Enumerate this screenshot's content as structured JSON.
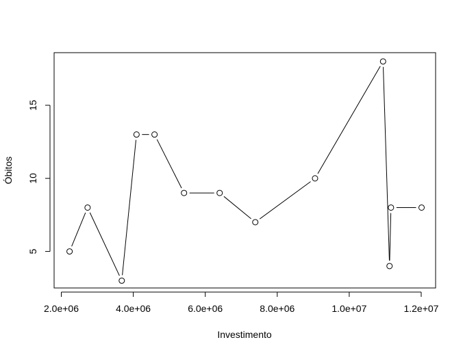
{
  "chart_data": {
    "type": "line",
    "title": "",
    "xlabel": "Investimento",
    "ylabel": "Óbitos",
    "xlim": [
      1800000,
      12400000
    ],
    "ylim": [
      2.5,
      18.6
    ],
    "grid": false,
    "x_ticks": [
      2000000,
      4000000,
      6000000,
      8000000,
      10000000,
      12000000
    ],
    "x_tick_labels": [
      "2.0e+06",
      "4.0e+06",
      "6.0e+06",
      "8.0e+06",
      "1.0e+07",
      "1.2e+07"
    ],
    "y_ticks": [
      5,
      10,
      15
    ],
    "y_tick_labels": [
      "5",
      "10",
      "15"
    ],
    "series": [
      {
        "x": [
          2230000,
          2730000,
          3680000,
          4090000,
          4590000,
          5410000,
          6400000,
          7390000,
          9050000,
          10940000,
          11120000,
          11160000,
          12010000
        ],
        "y": [
          5,
          8,
          3,
          13,
          13,
          9,
          9,
          7,
          10,
          18,
          4,
          8,
          8
        ]
      }
    ]
  }
}
